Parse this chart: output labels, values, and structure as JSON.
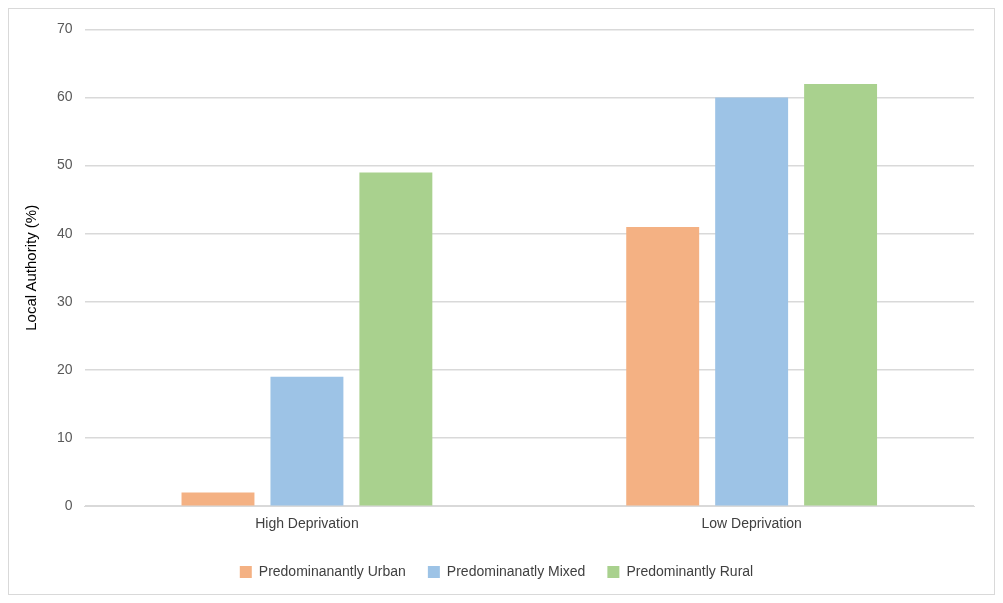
{
  "chart_data": {
    "type": "bar",
    "ylabel": "Local Authority (%)",
    "categories": [
      "High Deprivation",
      "Low Deprivation"
    ],
    "series": [
      {
        "name": "Predominanantly Urban",
        "color": "#f4b183",
        "values": [
          2,
          41
        ]
      },
      {
        "name": "Predominanatly Mixed",
        "color": "#9dc3e6",
        "values": [
          19,
          60
        ]
      },
      {
        "name": "Predominantly Rural",
        "color": "#a9d18e",
        "values": [
          49,
          62
        ]
      }
    ],
    "ylim": [
      0,
      70
    ],
    "yticks": [
      0,
      10,
      20,
      30,
      40,
      50,
      60,
      70
    ],
    "grid": "y",
    "legend": "bottom"
  }
}
